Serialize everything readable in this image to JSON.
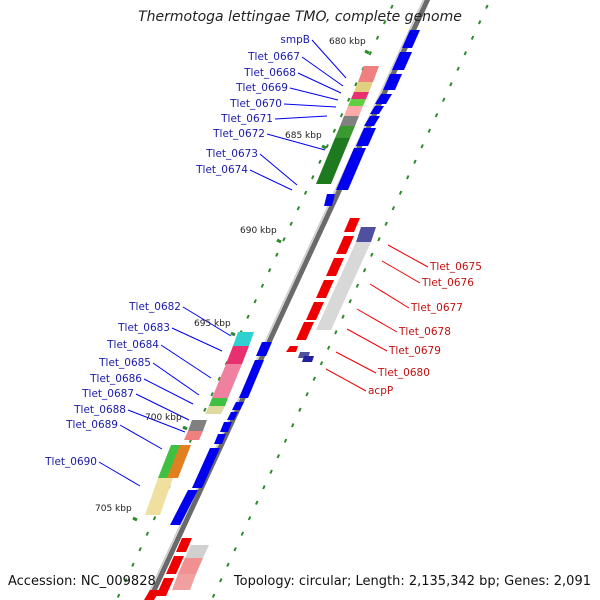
{
  "title": "Thermotoga lettingae TMO, complete genome",
  "accession": "Accession: NC_009828",
  "summary": "Topology: circular; Length: 2,135,342 bp; Genes: 2,091",
  "kbp_marks": [
    "680 kbp",
    "685 kbp",
    "690 kbp",
    "695 kbp",
    "700 kbp",
    "705 kbp"
  ],
  "genes_forward": [
    "smpB",
    "Tlet_0667",
    "Tlet_0668",
    "Tlet_0669",
    "Tlet_0670",
    "Tlet_0671",
    "Tlet_0672",
    "Tlet_0673",
    "Tlet_0674",
    "Tlet_0682",
    "Tlet_0683",
    "Tlet_0684",
    "Tlet_0685",
    "Tlet_0686",
    "Tlet_0687",
    "Tlet_0688",
    "Tlet_0689",
    "Tlet_0690"
  ],
  "genes_reverse": [
    "Tlet_0675",
    "Tlet_0676",
    "Tlet_0677",
    "Tlet_0678",
    "Tlet_0679",
    "Tlet_0680",
    "acpP"
  ],
  "colors": {
    "forward": "#0000ee",
    "reverse": "#ee0000",
    "forward_label": "#1a1aa8",
    "reverse_label": "#c01010",
    "backbone": "#888888",
    "tick": "#2a8a2a"
  }
}
